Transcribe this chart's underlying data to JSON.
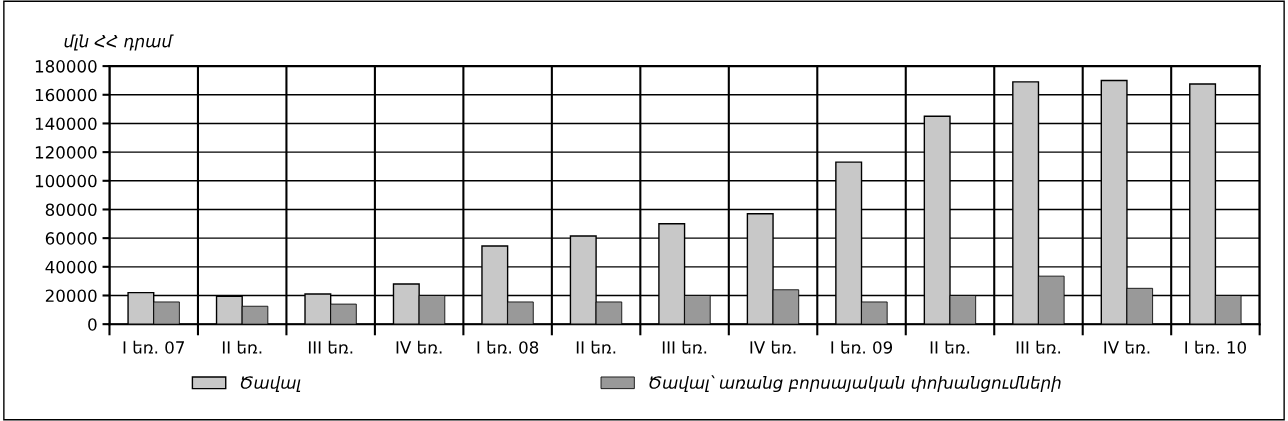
{
  "chart_data": {
    "type": "bar",
    "ylabel": "մլն ՀՀ դրամ",
    "categories": [
      "I եռ. 07",
      "II եռ.",
      "III եռ.",
      "IV եռ.",
      "I եռ. 08",
      "II եռ.",
      "III եռ.",
      "IV եռ.",
      "I եռ. 09",
      "II եռ.",
      "III եռ.",
      "IV եռ.",
      "I եռ. 10"
    ],
    "series": [
      {
        "name": "Ծավալ",
        "color": "#c8c8c8",
        "values": [
          22000,
          19500,
          21000,
          28000,
          54500,
          61500,
          70000,
          77000,
          113000,
          145000,
          169000,
          170000,
          167500
        ]
      },
      {
        "name": "Ծավալ՝ առանց բորսայական փոխանցումների",
        "color": "#999999",
        "values": [
          15500,
          12500,
          14000,
          20000,
          15500,
          15500,
          20000,
          24000,
          15500,
          20000,
          33500,
          25000,
          20000
        ]
      }
    ],
    "ylim": [
      0,
      180000
    ],
    "yticks": [
      0,
      20000,
      40000,
      60000,
      80000,
      100000,
      120000,
      140000,
      160000,
      180000
    ],
    "grid": true,
    "legend": "bottom"
  }
}
